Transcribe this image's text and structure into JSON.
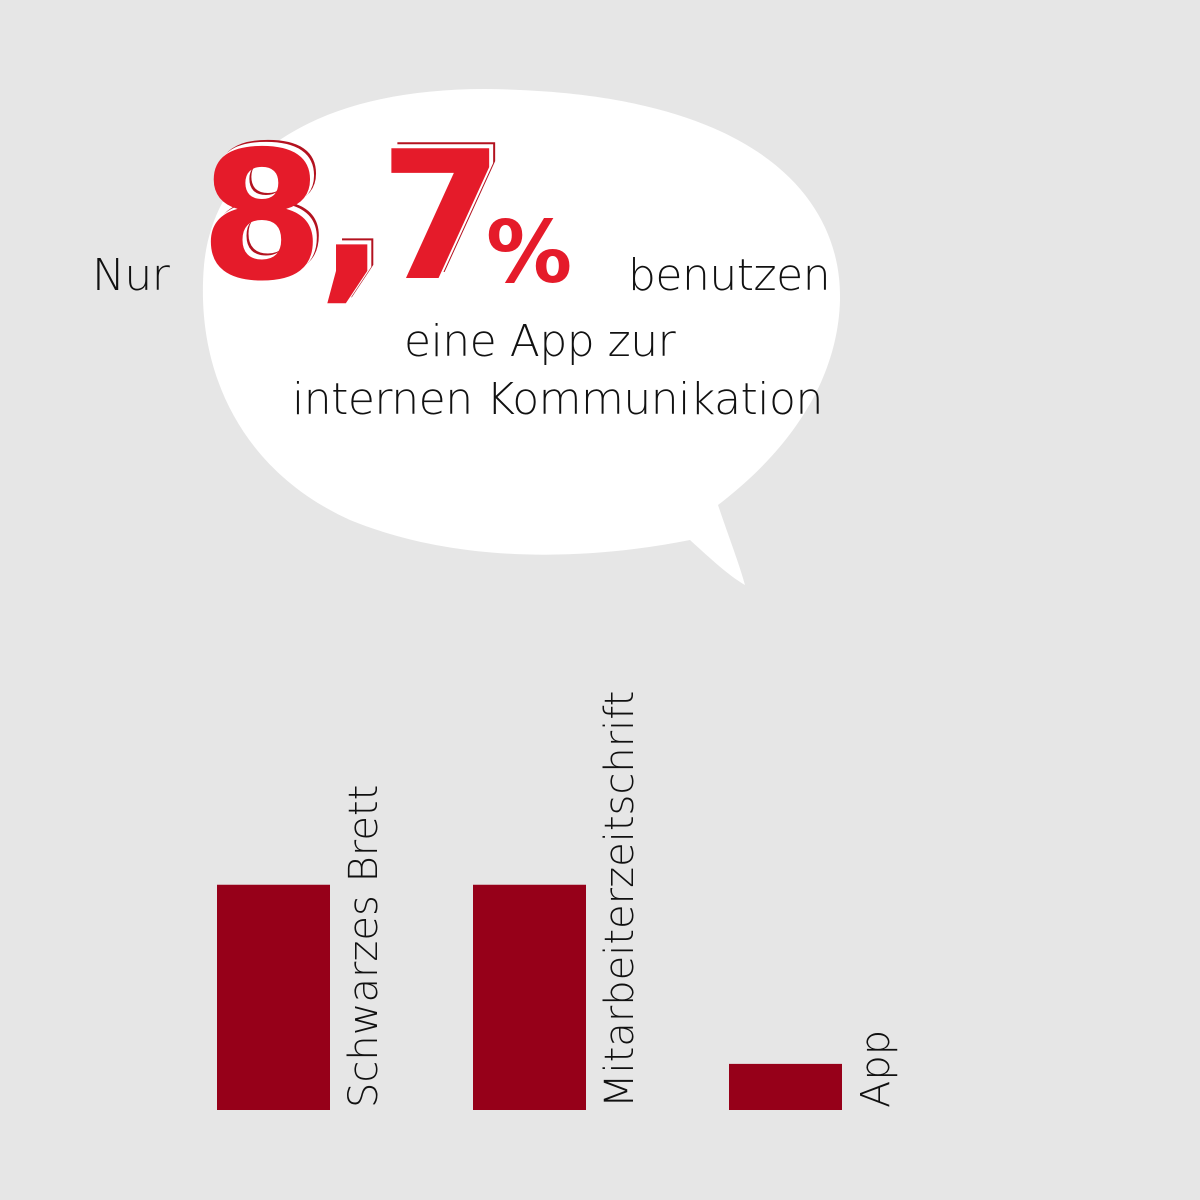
{
  "headline": {
    "prefix": "Nur",
    "number": "8,7",
    "percent_sign": "%",
    "suffix": "benutzen",
    "line2": "eine App zur",
    "line3": "internen Kommunikation"
  },
  "colors": {
    "background": "#e6e6e6",
    "bubble": "#ffffff",
    "accent": "#e51b2a",
    "bar": "#960019"
  },
  "chart_data": {
    "type": "bar",
    "categories": [
      "Schwarzes Brett",
      "Mitarbeiterzeitschrift",
      "App"
    ],
    "values": [
      42.5,
      42.5,
      8.7
    ],
    "title": "",
    "xlabel": "",
    "ylabel": "",
    "ylim": [
      0,
      50
    ],
    "grid": false
  }
}
